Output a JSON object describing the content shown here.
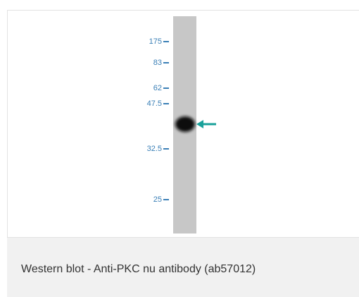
{
  "figure": {
    "markers": [
      "175",
      "83",
      "62",
      "47.5",
      "32.5",
      "25"
    ],
    "caption": "Western blot - Anti-PKC nu antibody (ab57012)"
  }
}
